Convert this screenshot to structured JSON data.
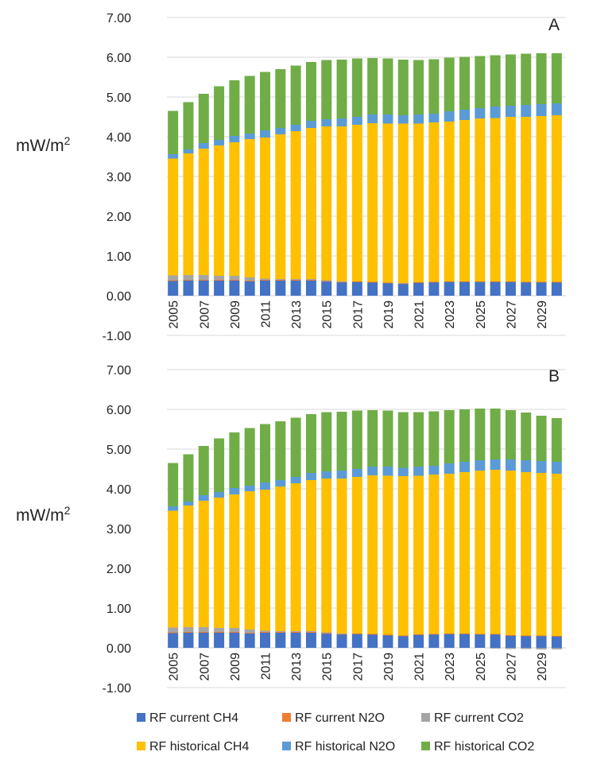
{
  "chart_data": [
    {
      "type": "bar",
      "stacked": true,
      "panel_label": "A",
      "ylabel": "mW/m",
      "ylabel_sup": "2",
      "ylim": [
        -1,
        7
      ],
      "yticks": [
        "-1.00",
        "0.00",
        "1.00",
        "2.00",
        "3.00",
        "4.00",
        "5.00",
        "6.00",
        "7.00"
      ],
      "grid": true,
      "categories": [
        2005,
        2006,
        2007,
        2008,
        2009,
        2010,
        2011,
        2012,
        2013,
        2014,
        2015,
        2016,
        2017,
        2018,
        2019,
        2020,
        2021,
        2022,
        2023,
        2024,
        2025,
        2026,
        2027,
        2028,
        2029,
        2030
      ],
      "xtick_labels": [
        "2005",
        "2007",
        "2009",
        "2011",
        "2013",
        "2015",
        "2017",
        "2019",
        "2021",
        "2023",
        "2025",
        "2027",
        "2029"
      ],
      "series": [
        {
          "name": "RF current CH4",
          "color": "#4472C4",
          "values": [
            0.37,
            0.38,
            0.38,
            0.38,
            0.38,
            0.36,
            0.38,
            0.38,
            0.38,
            0.38,
            0.36,
            0.34,
            0.35,
            0.34,
            0.32,
            0.3,
            0.33,
            0.34,
            0.35,
            0.35,
            0.35,
            0.35,
            0.35,
            0.34,
            0.34,
            0.34
          ]
        },
        {
          "name": "RF current N2O",
          "color": "#ED7D31",
          "values": [
            0.02,
            0.02,
            0.02,
            0.02,
            0.02,
            0.02,
            0.02,
            0.02,
            0.02,
            0.02,
            0.01,
            0.01,
            0.01,
            0.01,
            0.01,
            0.01,
            0.01,
            0.01,
            0.01,
            0.01,
            0.01,
            0.01,
            0.01,
            0.01,
            0.01,
            0.01
          ]
        },
        {
          "name": "RF current CO2",
          "color": "#A5A5A5",
          "values": [
            0.12,
            0.12,
            0.12,
            0.1,
            0.1,
            0.08,
            0.03,
            0.02,
            0.02,
            0.02,
            0.02,
            0.01,
            0,
            0,
            0,
            0.01,
            0,
            0,
            0,
            0,
            0,
            0,
            0,
            0,
            0,
            0
          ]
        },
        {
          "name": "RF historical CH4",
          "color": "#FFC000",
          "values": [
            2.94,
            3.06,
            3.18,
            3.28,
            3.36,
            3.48,
            3.55,
            3.64,
            3.72,
            3.8,
            3.87,
            3.9,
            3.94,
            3.99,
            4.0,
            4.01,
            3.99,
            4.01,
            4.02,
            4.06,
            4.1,
            4.11,
            4.14,
            4.15,
            4.17,
            4.19
          ]
        },
        {
          "name": "RF historical N2O",
          "color": "#5B9BD5",
          "values": [
            0.11,
            0.1,
            0.14,
            0.14,
            0.16,
            0.14,
            0.18,
            0.16,
            0.16,
            0.18,
            0.18,
            0.2,
            0.2,
            0.22,
            0.23,
            0.21,
            0.23,
            0.22,
            0.26,
            0.26,
            0.26,
            0.29,
            0.28,
            0.3,
            0.3,
            0.3
          ]
        },
        {
          "name": "RF historical CO2",
          "color": "#70AD47",
          "values": [
            1.09,
            1.19,
            1.24,
            1.35,
            1.4,
            1.45,
            1.47,
            1.48,
            1.49,
            1.48,
            1.49,
            1.48,
            1.47,
            1.42,
            1.41,
            1.4,
            1.37,
            1.37,
            1.35,
            1.33,
            1.31,
            1.29,
            1.29,
            1.29,
            1.28,
            1.26
          ]
        }
      ]
    },
    {
      "type": "bar",
      "stacked": true,
      "panel_label": "B",
      "ylabel": "mW/m",
      "ylabel_sup": "2",
      "ylim": [
        -1,
        7
      ],
      "yticks": [
        "-1.00",
        "0.00",
        "1.00",
        "2.00",
        "3.00",
        "4.00",
        "5.00",
        "6.00",
        "7.00"
      ],
      "grid": true,
      "categories": [
        2005,
        2006,
        2007,
        2008,
        2009,
        2010,
        2011,
        2012,
        2013,
        2014,
        2015,
        2016,
        2017,
        2018,
        2019,
        2020,
        2021,
        2022,
        2023,
        2024,
        2025,
        2026,
        2027,
        2028,
        2029,
        2030
      ],
      "xtick_labels": [
        "2005",
        "2007",
        "2009",
        "2011",
        "2013",
        "2015",
        "2017",
        "2019",
        "2021",
        "2023",
        "2025",
        "2027",
        "2029"
      ],
      "series": [
        {
          "name": "RF current CH4",
          "color": "#4472C4",
          "values": [
            0.37,
            0.38,
            0.38,
            0.38,
            0.38,
            0.36,
            0.38,
            0.38,
            0.38,
            0.38,
            0.36,
            0.34,
            0.35,
            0.34,
            0.32,
            0.3,
            0.33,
            0.34,
            0.35,
            0.35,
            0.34,
            0.34,
            0.31,
            0.3,
            0.3,
            0.29
          ]
        },
        {
          "name": "RF current N2O",
          "color": "#ED7D31",
          "values": [
            0.02,
            0.02,
            0.02,
            0.02,
            0.02,
            0.02,
            0.02,
            0.02,
            0.02,
            0.02,
            0.01,
            0.01,
            0.01,
            0.01,
            0.01,
            0.01,
            0.01,
            0.01,
            0.01,
            0.01,
            0.01,
            0.01,
            0.01,
            0.01,
            0.01,
            0.01
          ]
        },
        {
          "name": "RF current CO2",
          "color": "#A5A5A5",
          "values": [
            0.12,
            0.12,
            0.12,
            0.1,
            0.1,
            0.08,
            0.03,
            0.02,
            0.02,
            0.02,
            0.02,
            0.01,
            0,
            0,
            0,
            0,
            0,
            0,
            0,
            0,
            0,
            -0.02,
            -0.03,
            -0.03,
            -0.04,
            -0.04
          ]
        },
        {
          "name": "RF historical CH4",
          "color": "#FFC000",
          "values": [
            2.94,
            3.06,
            3.18,
            3.28,
            3.36,
            3.48,
            3.55,
            3.64,
            3.72,
            3.8,
            3.87,
            3.9,
            3.94,
            3.99,
            4.0,
            4.01,
            3.99,
            4.01,
            4.02,
            4.06,
            4.11,
            4.13,
            4.14,
            4.11,
            4.09,
            4.08
          ]
        },
        {
          "name": "RF historical N2O",
          "color": "#5B9BD5",
          "values": [
            0.11,
            0.1,
            0.14,
            0.14,
            0.16,
            0.14,
            0.18,
            0.16,
            0.16,
            0.18,
            0.18,
            0.2,
            0.2,
            0.22,
            0.23,
            0.21,
            0.23,
            0.22,
            0.26,
            0.26,
            0.26,
            0.26,
            0.28,
            0.3,
            0.3,
            0.3
          ]
        },
        {
          "name": "RF historical CO2",
          "color": "#70AD47",
          "values": [
            1.09,
            1.19,
            1.24,
            1.35,
            1.4,
            1.45,
            1.47,
            1.48,
            1.49,
            1.48,
            1.49,
            1.48,
            1.47,
            1.42,
            1.41,
            1.4,
            1.37,
            1.37,
            1.34,
            1.32,
            1.3,
            1.28,
            1.24,
            1.2,
            1.14,
            1.1
          ]
        }
      ]
    }
  ],
  "legend": [
    {
      "label": "RF current CH4",
      "color": "#4472C4"
    },
    {
      "label": "RF current N2O",
      "color": "#ED7D31"
    },
    {
      "label": "RF current CO2",
      "color": "#A5A5A5"
    },
    {
      "label": "RF historical CH4",
      "color": "#FFC000"
    },
    {
      "label": "RF historical N2O",
      "color": "#5B9BD5"
    },
    {
      "label": "RF historical CO2",
      "color": "#70AD47"
    }
  ]
}
